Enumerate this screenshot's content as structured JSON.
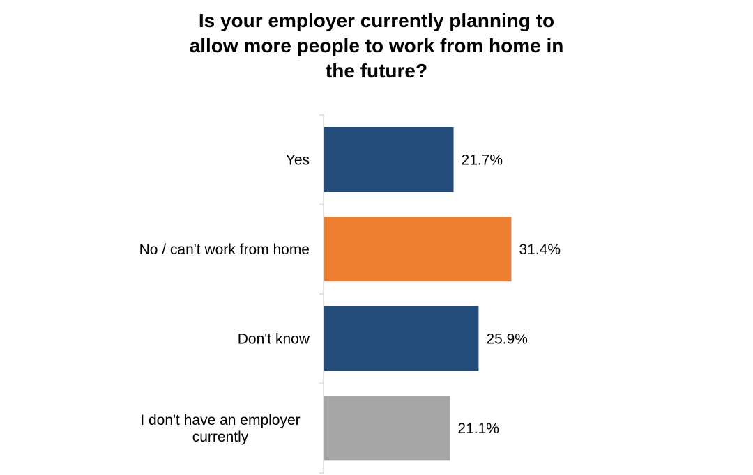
{
  "chart_data": {
    "type": "bar",
    "orientation": "horizontal",
    "title": "Is your employer currently planning to allow more people to work from home in the future?",
    "categories": [
      "Yes",
      "No / can't work from home",
      "Don't know",
      "I don't have an employer currently"
    ],
    "category_lines": [
      [
        "Yes"
      ],
      [
        "No / can't work from home"
      ],
      [
        "Don't know"
      ],
      [
        "I don't have an employer",
        "currently"
      ]
    ],
    "values": [
      21.7,
      31.4,
      25.9,
      21.1
    ],
    "value_labels": [
      "21.7%",
      "31.4%",
      "25.9%",
      "21.1%"
    ],
    "colors": [
      "#244c7a",
      "#ed7d31",
      "#244c7a",
      "#a6a6a6"
    ],
    "xlim": [
      0,
      70
    ],
    "grid": false,
    "legend": "none"
  }
}
